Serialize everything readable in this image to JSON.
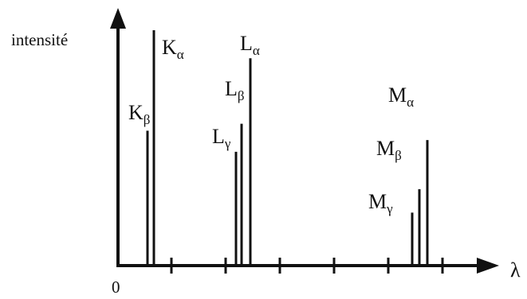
{
  "diagram": {
    "y_axis_label": "intensité",
    "x_axis_label": "λ",
    "origin_label": "0",
    "colors": {
      "ink": "#111111",
      "background": "#ffffff"
    },
    "lines": [
      {
        "family": "K",
        "sub": "β",
        "intensity": 0.57
      },
      {
        "family": "K",
        "sub": "α",
        "intensity": 1.0
      },
      {
        "family": "L",
        "sub": "γ",
        "intensity": 0.48
      },
      {
        "family": "L",
        "sub": "β",
        "intensity": 0.6
      },
      {
        "family": "L",
        "sub": "α",
        "intensity": 0.88
      },
      {
        "family": "M",
        "sub": "γ",
        "intensity": 0.22
      },
      {
        "family": "M",
        "sub": "β",
        "intensity": 0.32
      },
      {
        "family": "M",
        "sub": "α",
        "intensity": 0.53
      }
    ]
  }
}
